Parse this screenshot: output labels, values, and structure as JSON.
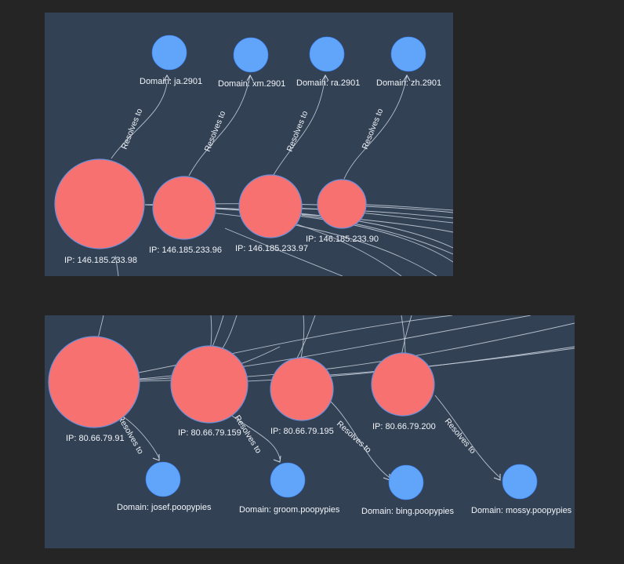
{
  "edge_label": "Resolves to",
  "panels": [
    {
      "ips": [
        {
          "label": "IP: 146.185.233.98"
        },
        {
          "label": "IP: 146.185.233.96"
        },
        {
          "label": "IP: 146.185.233.97"
        },
        {
          "label": "IP: 146.185.233.90"
        }
      ],
      "domains": [
        {
          "label": "Domain: ja.2901"
        },
        {
          "label": "Domain: xm.2901"
        },
        {
          "label": "Domain: ra.2901"
        },
        {
          "label": "Domain: zh.2901"
        }
      ]
    },
    {
      "ips": [
        {
          "label": "IP: 80.66.79.91"
        },
        {
          "label": "IP: 80.66.79.159"
        },
        {
          "label": "IP: 80.66.79.195"
        },
        {
          "label": "IP: 80.66.79.200"
        }
      ],
      "domains": [
        {
          "label": "Domain: josef.poopypies"
        },
        {
          "label": "Domain: groom.poopypies"
        },
        {
          "label": "Domain: bing.poopypies"
        },
        {
          "label": "Domain: mossy.poopypies"
        }
      ]
    }
  ],
  "colors": {
    "background": "#252526",
    "panel": "#334155",
    "ip_node": "#f87171",
    "domain_node": "#60a5fa",
    "edge": "#cbd5e1",
    "text": "#f1f5f9"
  }
}
